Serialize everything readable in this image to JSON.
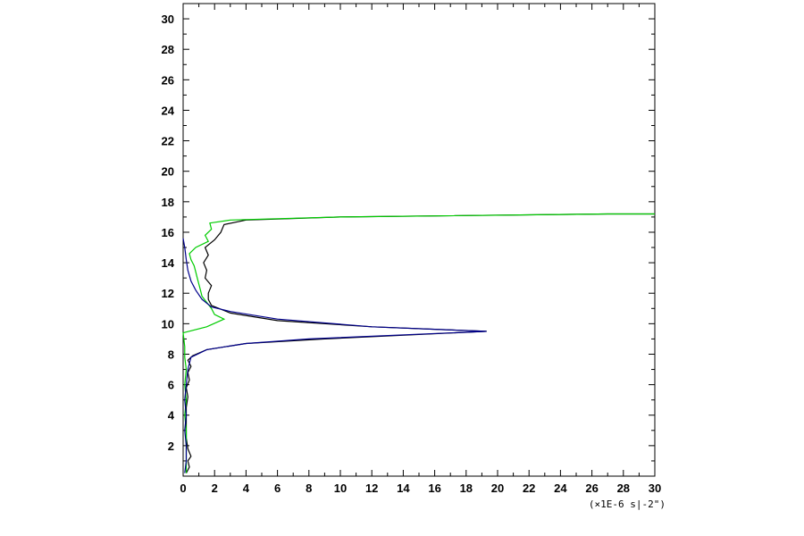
{
  "chart_data": {
    "type": "line",
    "title": "",
    "xlabel": "",
    "ylabel": "",
    "x_unit_label": "(×1E-6 s|-2\")",
    "xlim": [
      0,
      30
    ],
    "ylim": [
      0,
      31
    ],
    "x_ticks": [
      0,
      2,
      4,
      6,
      8,
      10,
      12,
      14,
      16,
      18,
      20,
      22,
      24,
      26,
      28,
      30
    ],
    "y_ticks": [
      2,
      4,
      6,
      8,
      10,
      12,
      14,
      16,
      18,
      20,
      22,
      24,
      26,
      28,
      30
    ],
    "grid": false,
    "series": [
      {
        "color": "#000000",
        "points": [
          [
            0.2,
            0.2
          ],
          [
            0.4,
            0.6
          ],
          [
            0.3,
            1.0
          ],
          [
            0.5,
            1.3
          ],
          [
            0.3,
            1.8
          ],
          [
            0.2,
            2.5
          ],
          [
            0.2,
            3.5
          ],
          [
            0.2,
            4.5
          ],
          [
            0.3,
            5.2
          ],
          [
            0.2,
            5.8
          ],
          [
            0.4,
            6.3
          ],
          [
            0.3,
            6.8
          ],
          [
            0.5,
            7.2
          ],
          [
            0.3,
            7.6
          ],
          [
            0.6,
            7.9
          ],
          [
            1.5,
            8.3
          ],
          [
            4.0,
            8.7
          ],
          [
            9.0,
            9.0
          ],
          [
            19.3,
            9.5
          ],
          [
            12.0,
            9.8
          ],
          [
            6.0,
            10.2
          ],
          [
            3.0,
            10.7
          ],
          [
            1.8,
            11.2
          ],
          [
            1.6,
            11.6
          ],
          [
            1.6,
            12.0
          ],
          [
            1.8,
            12.5
          ],
          [
            1.4,
            13.0
          ],
          [
            1.5,
            13.5
          ],
          [
            1.3,
            14.0
          ],
          [
            1.6,
            14.5
          ],
          [
            1.4,
            15.0
          ],
          [
            2.0,
            15.5
          ],
          [
            2.4,
            16.0
          ],
          [
            2.6,
            16.5
          ],
          [
            4.0,
            16.8
          ],
          [
            10.0,
            17.0
          ],
          [
            27.0,
            17.2
          ],
          [
            30.0,
            17.2
          ]
        ]
      },
      {
        "color": "#00cc00",
        "points": [
          [
            0.2,
            0.2
          ],
          [
            0.2,
            1.0
          ],
          [
            0.2,
            2.0
          ],
          [
            0.2,
            3.0
          ],
          [
            0.1,
            4.0
          ],
          [
            0.2,
            5.0
          ],
          [
            0.1,
            6.0
          ],
          [
            0.2,
            7.0
          ],
          [
            0.1,
            7.8
          ],
          [
            0.1,
            8.5
          ],
          [
            0.0,
            9.4
          ],
          [
            1.5,
            9.8
          ],
          [
            2.6,
            10.3
          ],
          [
            2.0,
            10.6
          ],
          [
            1.8,
            11.0
          ],
          [
            1.5,
            11.4
          ],
          [
            1.2,
            11.8
          ],
          [
            1.1,
            12.2
          ],
          [
            1.0,
            12.6
          ],
          [
            0.9,
            13.0
          ],
          [
            0.8,
            13.4
          ],
          [
            0.7,
            13.8
          ],
          [
            0.5,
            14.2
          ],
          [
            0.4,
            14.6
          ],
          [
            0.8,
            15.0
          ],
          [
            1.6,
            15.4
          ],
          [
            1.4,
            15.8
          ],
          [
            1.8,
            16.2
          ],
          [
            1.7,
            16.6
          ],
          [
            3.0,
            16.8
          ],
          [
            10.0,
            17.0
          ],
          [
            27.0,
            17.2
          ],
          [
            30.0,
            17.2
          ]
        ]
      },
      {
        "color": "#00008b",
        "points": [
          [
            0.1,
            0.2
          ],
          [
            0.2,
            1.0
          ],
          [
            0.2,
            2.0
          ],
          [
            0.1,
            3.0
          ],
          [
            0.2,
            4.0
          ],
          [
            0.1,
            5.0
          ],
          [
            0.2,
            6.0
          ],
          [
            0.3,
            7.0
          ],
          [
            0.5,
            7.8
          ],
          [
            1.5,
            8.3
          ],
          [
            4.0,
            8.7
          ],
          [
            8.0,
            9.0
          ],
          [
            19.3,
            9.5
          ],
          [
            12.0,
            9.8
          ],
          [
            6.0,
            10.3
          ],
          [
            3.0,
            10.8
          ],
          [
            1.8,
            11.1
          ],
          [
            1.2,
            11.6
          ],
          [
            0.8,
            12.2
          ],
          [
            0.5,
            12.8
          ],
          [
            0.3,
            13.5
          ],
          [
            0.2,
            14.2
          ],
          [
            0.1,
            15.0
          ],
          [
            0.0,
            15.6
          ]
        ]
      }
    ]
  }
}
